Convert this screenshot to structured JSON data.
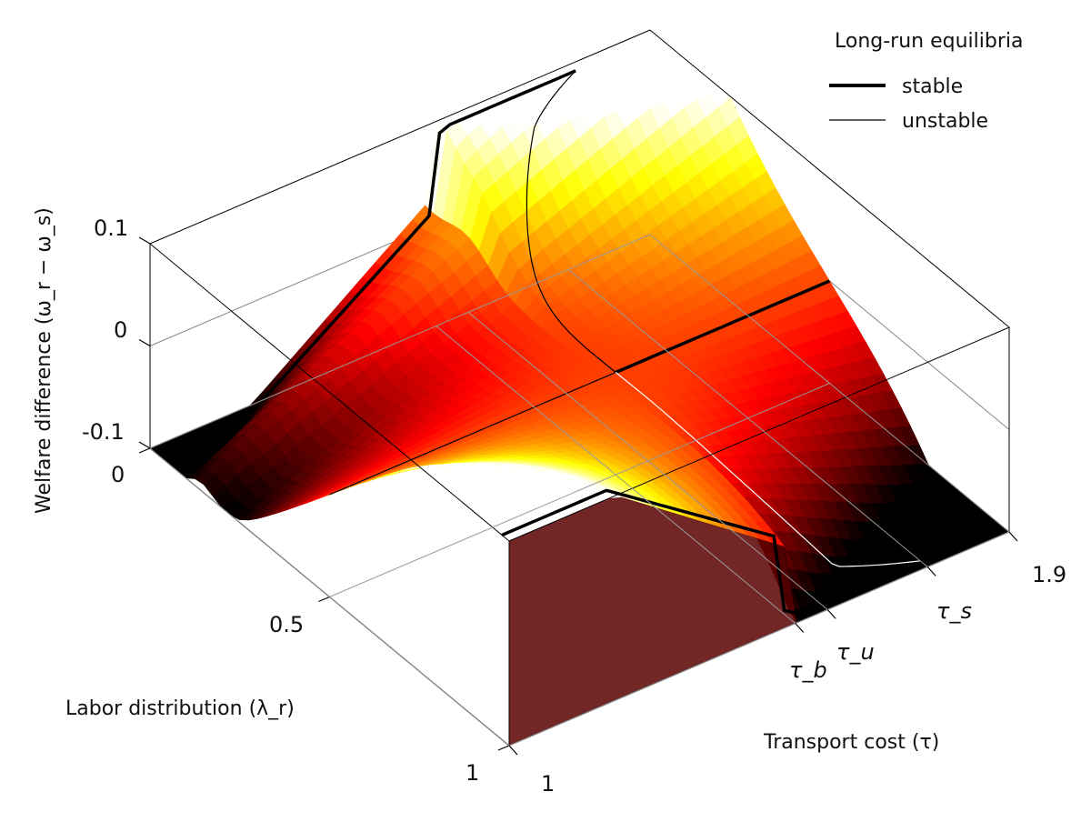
{
  "chart_data": {
    "type": "surface",
    "zlabel": "Welfare difference (ω_r − ω_s)",
    "xlabel": "Labor distribution (λ_r)",
    "ylabel": "Transport cost (τ)",
    "z_ticks": [
      "0.1",
      "0",
      "-0.1"
    ],
    "z_range": [
      -0.1,
      0.1
    ],
    "x_ticks": [
      "0",
      "0.5",
      "1"
    ],
    "x_range": [
      0,
      1
    ],
    "y_ticks": [
      "1",
      "τ_b",
      "τ_u",
      "τ_s",
      "1.9"
    ],
    "y_tick_values": [
      1,
      1.515,
      1.573,
      1.753,
      1.9
    ],
    "y_range": [
      1,
      1.9
    ],
    "colormap": "hot (black-red-yellow-white)",
    "legend": {
      "title": "Long-run equilibria",
      "placement": "top-right",
      "entries": [
        {
          "label": "stable",
          "style": "thick black line"
        },
        {
          "label": "unstable",
          "style": "thin black line"
        }
      ]
    }
  }
}
